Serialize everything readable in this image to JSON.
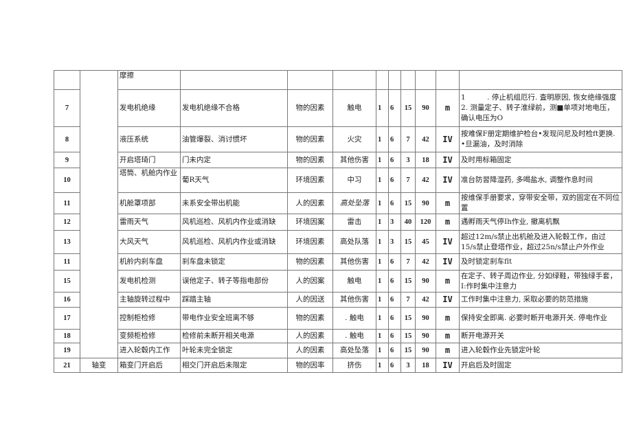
{
  "rows": [
    {
      "no": "",
      "item": "摩擦",
      "hazard": "",
      "factor": "",
      "consequence": "",
      "L": "",
      "E": "",
      "C": "",
      "D": "",
      "level": "",
      "measure": ""
    },
    {
      "no": "7",
      "item": "发电机绝缘",
      "hazard": "发电机绝缘不合格",
      "factor": "物的因素",
      "consequence": "触电",
      "L": "1",
      "E": "6",
      "C": "15",
      "D": "90",
      "level": "m",
      "measure": "1　　　. 停止机组厄行. 査明原因, 恢女绝缘强度 2. 测量定子、转子淮绿前，测■单项对地电压，确认电压为O"
    },
    {
      "no": "8",
      "item": "液压系统",
      "hazard": "油管爆裂、消讨惯坏",
      "factor": "物的因素",
      "consequence": "火灾",
      "L": "1",
      "E": "6",
      "C": "7",
      "D": "42",
      "level": "IV",
      "measure": "按难保F册定期维护检台•发现问尼及时检ft更换. •旦漏油，及时消除"
    },
    {
      "no": "9",
      "item": "开启塔琦门",
      "hazard": "门未内定",
      "factor": "物的因素",
      "consequence": "其他伤害",
      "L": "1",
      "E": "6",
      "C": "3",
      "D": "18",
      "level": "IV",
      "measure": "及时用标箱固定"
    },
    {
      "no": "10",
      "item": "塔筒、机舱内作业",
      "hazard": "葡R天气",
      "factor": "环境因素",
      "consequence": "中习",
      "L": "1",
      "E": "6",
      "C": "7",
      "D": "42",
      "level": "IV",
      "measure": "准台防習降湿药, 多喝盐水, 调整作息时间"
    },
    {
      "no": "11",
      "item": "机舱罩项部",
      "hazard": "未系安全带出机能",
      "factor": "人的因素",
      "consequence": "高处坠落",
      "L": "1",
      "E": "6",
      "C": "15",
      "D": "90",
      "level": "m",
      "measure": "按维保手册要求，穿带安全带，双的固定在不同位置"
    },
    {
      "no": "12",
      "item": "雷雨天气",
      "hazard": "风机巡检、风机内作业或消缺",
      "factor": "环境因案",
      "consequence": "雷击",
      "L": "1",
      "E": "3",
      "C": "40",
      "D": "120",
      "level": "m",
      "measure": "遇孵雨天气停Ih作业, 撤离机飘"
    },
    {
      "no": "13",
      "item": "大风天气",
      "hazard": "风机巡检、风机内作业或消缺",
      "factor": "环境因素",
      "consequence": "高处队落",
      "L": "1",
      "E": "3",
      "C": "15",
      "D": "45",
      "level": "IV",
      "measure": "超过12m/s禁止出机舱及进入轮毂工作，由过15/s禁止登塔作业，超过25n/s禁止户外作业"
    },
    {
      "no": "11",
      "item": "机舲内刹车盘",
      "hazard": "刹车盘未锁定",
      "factor": "物的因素",
      "consequence": "其他伤害",
      "L": "1",
      "E": "6",
      "C": "7",
      "D": "42",
      "level": "IV",
      "measure": "及时锁定刹车flt"
    },
    {
      "no": "15",
      "item": "发电机检测",
      "hazard": "误他定子、转子等指电部份",
      "factor": "人的因案",
      "consequence": "触电",
      "L": "1",
      "E": "6",
      "C": "15",
      "D": "90",
      "level": "m",
      "measure": "在定子、转子周边作业, 分如绿鞋，带独绿手套，I:作时集中注意力"
    },
    {
      "no": "16",
      "item": "主轴旋转过程中",
      "hazard": "踩踏主轴",
      "factor": "人的因送",
      "consequence": "其他伤害",
      "L": "1",
      "E": "6",
      "C": "7",
      "D": "42",
      "level": "IV",
      "measure": "工作时集中注意力, 采取必要的防范措施"
    },
    {
      "no": "17",
      "item": "控制柜检修",
      "hazard": "带电作业安全班离不够",
      "factor": "物的因素",
      "consequence": ". 触电",
      "L": "1",
      "E": "6",
      "C": "15",
      "D": "90",
      "level": "m",
      "measure": "保持安全即离. 必要时断开电源开关. 停电作业"
    },
    {
      "no": "18",
      "item": "变频柜检修",
      "hazard": "检修前未断开相关电源",
      "factor": "人的因素",
      "consequence": ". 触电",
      "L": "1",
      "E": "6",
      "C": "15",
      "D": "90",
      "level": "m",
      "measure": "断开电源开关"
    },
    {
      "no": "19",
      "item": "进入轮毂内工作",
      "hazard": "叶轮未完全锁定",
      "factor": "人的因素",
      "consequence": "高处坠落",
      "L": "1",
      "E": "6",
      "C": "15",
      "D": "90",
      "level": "m",
      "measure": "进入轮毂作业先锁定叶轮"
    },
    {
      "no": "21",
      "category": "轴变",
      "item": "箱变门开启后",
      "hazard": "相交门开启后未限定",
      "factor": "物的因率",
      "consequence": "挤伤",
      "L": "1",
      "E": "6",
      "C": "3",
      "D": "18",
      "level": "IV",
      "measure": "开启后及时固定"
    }
  ]
}
